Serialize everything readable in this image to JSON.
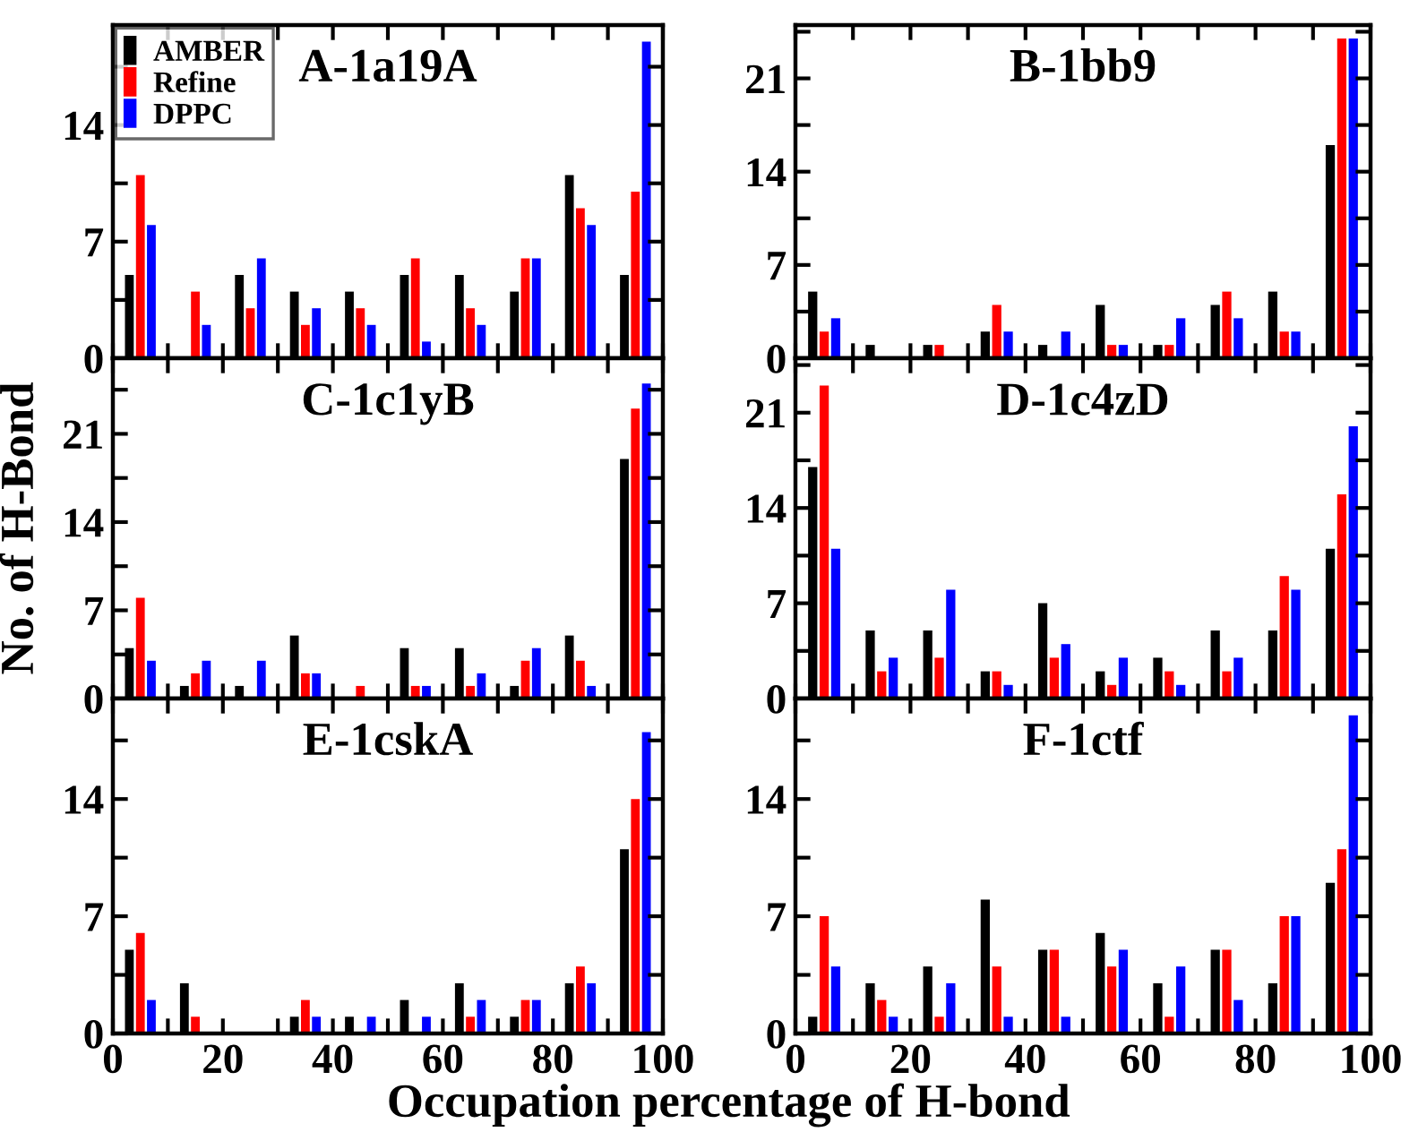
{
  "chart_data": [
    {
      "type": "bar",
      "title": "A-1a19A",
      "x": [
        5,
        15,
        25,
        35,
        45,
        55,
        65,
        75,
        85,
        95
      ],
      "xlim": [
        0,
        100
      ],
      "xticks": [
        0,
        {
          "value": 10,
          "label": null
        },
        20,
        {
          "value": 30,
          "label": null
        },
        40,
        {
          "value": 50,
          "label": null
        },
        60,
        {
          "value": 70,
          "label": null
        },
        80,
        {
          "value": 90,
          "label": null
        },
        100
      ],
      "ylim": [
        0,
        20
      ],
      "yticks": [
        0,
        {
          "value": 3.5,
          "label": null
        },
        7,
        {
          "value": 10.5,
          "label": null
        },
        14,
        {
          "value": 17.5,
          "label": null
        }
      ],
      "tick_labels": "y",
      "legend": "top left",
      "grid": false,
      "series": [
        {
          "name": "AMBER",
          "color": "#000000",
          "values": [
            5,
            0,
            5,
            4,
            4,
            5,
            5,
            4,
            11,
            5
          ]
        },
        {
          "name": "Refine",
          "color": "#ff0000",
          "values": [
            11,
            4,
            3,
            2,
            3,
            6,
            3,
            6,
            9,
            10
          ]
        },
        {
          "name": "DPPC",
          "color": "#0000ff",
          "values": [
            8,
            2,
            6,
            3,
            2,
            1,
            2,
            6,
            8,
            19
          ]
        }
      ]
    },
    {
      "type": "bar",
      "title": "B-1bb9",
      "x": [
        5,
        15,
        25,
        35,
        45,
        55,
        65,
        75,
        85,
        95
      ],
      "xlim": [
        0,
        100
      ],
      "xticks": [
        0,
        {
          "value": 10,
          "label": null
        },
        20,
        {
          "value": 30,
          "label": null
        },
        40,
        {
          "value": 50,
          "label": null
        },
        60,
        {
          "value": 70,
          "label": null
        },
        80,
        {
          "value": 90,
          "label": null
        },
        100
      ],
      "ylim": [
        0,
        25
      ],
      "yticks": [
        0,
        {
          "value": 3.5,
          "label": null
        },
        7,
        {
          "value": 10.5,
          "label": null
        },
        14,
        {
          "value": 17.5,
          "label": null
        },
        21,
        {
          "value": 24.5,
          "label": null
        }
      ],
      "tick_labels": "y",
      "grid": false,
      "series": [
        {
          "color": "#000000",
          "values": [
            5,
            1,
            1,
            2,
            1,
            4,
            1,
            4,
            5,
            16
          ]
        },
        {
          "color": "#ff0000",
          "values": [
            2,
            0,
            1,
            4,
            0,
            1,
            1,
            5,
            2,
            24
          ]
        },
        {
          "color": "#0000ff",
          "values": [
            3,
            0,
            0,
            2,
            2,
            1,
            3,
            3,
            2,
            24
          ]
        }
      ]
    },
    {
      "type": "bar",
      "title": "C-1c1yB",
      "ylabel": "No. of H-Bond",
      "x": [
        5,
        15,
        25,
        35,
        45,
        55,
        65,
        75,
        85,
        95
      ],
      "xlim": [
        0,
        100
      ],
      "xticks": [
        0,
        {
          "value": 10,
          "label": null
        },
        20,
        {
          "value": 30,
          "label": null
        },
        40,
        {
          "value": 50,
          "label": null
        },
        60,
        {
          "value": 70,
          "label": null
        },
        80,
        {
          "value": 90,
          "label": null
        },
        100
      ],
      "ylim": [
        0,
        27
      ],
      "yticks": [
        0,
        {
          "value": 3.5,
          "label": null
        },
        7,
        {
          "value": 10.5,
          "label": null
        },
        14,
        {
          "value": 17.5,
          "label": null
        },
        21,
        {
          "value": 24.5,
          "label": null
        }
      ],
      "tick_labels": "y",
      "grid": false,
      "series": [
        {
          "color": "#000000",
          "values": [
            4,
            1,
            1,
            5,
            0,
            4,
            4,
            1,
            5,
            19
          ]
        },
        {
          "color": "#ff0000",
          "values": [
            8,
            2,
            0,
            2,
            1,
            1,
            1,
            3,
            3,
            23
          ]
        },
        {
          "color": "#0000ff",
          "values": [
            3,
            3,
            3,
            2,
            0,
            1,
            2,
            4,
            1,
            25
          ]
        }
      ]
    },
    {
      "type": "bar",
      "title": "D-1c4zD",
      "x": [
        5,
        15,
        25,
        35,
        45,
        55,
        65,
        75,
        85,
        95
      ],
      "xlim": [
        0,
        100
      ],
      "xticks": [
        0,
        {
          "value": 10,
          "label": null
        },
        20,
        {
          "value": 30,
          "label": null
        },
        40,
        {
          "value": 50,
          "label": null
        },
        60,
        {
          "value": 70,
          "label": null
        },
        80,
        {
          "value": 90,
          "label": null
        },
        100
      ],
      "ylim": [
        0,
        25
      ],
      "yticks": [
        0,
        {
          "value": 3.5,
          "label": null
        },
        7,
        {
          "value": 10.5,
          "label": null
        },
        14,
        {
          "value": 17.5,
          "label": null
        },
        21,
        {
          "value": 24.5,
          "label": null
        }
      ],
      "tick_labels": "y",
      "grid": false,
      "series": [
        {
          "color": "#000000",
          "values": [
            17,
            5,
            5,
            2,
            7,
            2,
            3,
            5,
            5,
            11
          ]
        },
        {
          "color": "#ff0000",
          "values": [
            23,
            2,
            3,
            2,
            3,
            1,
            2,
            2,
            9,
            15
          ]
        },
        {
          "color": "#0000ff",
          "values": [
            11,
            3,
            8,
            1,
            4,
            3,
            1,
            3,
            8,
            20
          ]
        }
      ]
    },
    {
      "type": "bar",
      "title": "E-1cskA",
      "xlabel": "Occupation percentage of H-bond",
      "x": [
        5,
        15,
        25,
        35,
        45,
        55,
        65,
        75,
        85,
        95
      ],
      "xlim": [
        0,
        100
      ],
      "xticks": [
        0,
        {
          "value": 10,
          "label": null
        },
        20,
        {
          "value": 30,
          "label": null
        },
        40,
        {
          "value": 50,
          "label": null
        },
        60,
        {
          "value": 70,
          "label": null
        },
        80,
        {
          "value": 90,
          "label": null
        },
        100
      ],
      "ylim": [
        0,
        20
      ],
      "yticks": [
        0,
        {
          "value": 3.5,
          "label": null
        },
        7,
        {
          "value": 10.5,
          "label": null
        },
        14,
        {
          "value": 17.5,
          "label": null
        }
      ],
      "grid": false,
      "series": [
        {
          "color": "#000000",
          "values": [
            5,
            3,
            0,
            1,
            1,
            2,
            3,
            1,
            3,
            11
          ]
        },
        {
          "color": "#ff0000",
          "values": [
            6,
            1,
            0,
            2,
            0,
            0,
            1,
            2,
            4,
            14
          ]
        },
        {
          "color": "#0000ff",
          "values": [
            2,
            0,
            0,
            1,
            1,
            1,
            2,
            2,
            3,
            18
          ]
        }
      ]
    },
    {
      "type": "bar",
      "title": "F-1ctf",
      "x": [
        5,
        15,
        25,
        35,
        45,
        55,
        65,
        75,
        85,
        95
      ],
      "xlim": [
        0,
        100
      ],
      "xticks": [
        0,
        {
          "value": 10,
          "label": null
        },
        20,
        {
          "value": 30,
          "label": null
        },
        40,
        {
          "value": 50,
          "label": null
        },
        60,
        {
          "value": 70,
          "label": null
        },
        80,
        {
          "value": 90,
          "label": null
        },
        100
      ],
      "ylim": [
        0,
        20
      ],
      "yticks": [
        0,
        {
          "value": 3.5,
          "label": null
        },
        7,
        {
          "value": 10.5,
          "label": null
        },
        14,
        {
          "value": 17.5,
          "label": null
        }
      ],
      "grid": false,
      "series": [
        {
          "color": "#000000",
          "values": [
            1,
            3,
            4,
            8,
            5,
            6,
            3,
            5,
            3,
            9
          ]
        },
        {
          "color": "#ff0000",
          "values": [
            7,
            2,
            1,
            4,
            5,
            4,
            1,
            5,
            7,
            11
          ]
        },
        {
          "color": "#0000ff",
          "values": [
            4,
            1,
            3,
            1,
            1,
            5,
            4,
            2,
            7,
            19
          ]
        }
      ]
    }
  ]
}
